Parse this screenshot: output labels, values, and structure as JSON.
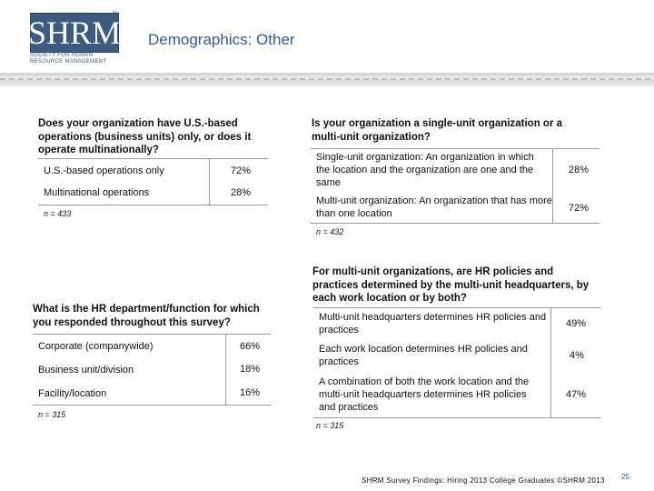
{
  "logo": {
    "text": "SHRM",
    "reg": "®",
    "sub_line1": "SOCIETY FOR HUMAN",
    "sub_line2": "RESOURCE MANAGEMENT"
  },
  "title": "Demographics: Other",
  "q1": {
    "question": "Does your organization have U.S.-based operations (business units) only, or does it operate multinationally?",
    "rows": [
      {
        "label": "U.S.-based operations only",
        "value": "72%"
      },
      {
        "label": "Multinational operations",
        "value": "28%"
      }
    ],
    "n": "n = 433"
  },
  "q2": {
    "question": "Is your organization a single-unit organization or a multi-unit organization?",
    "rows": [
      {
        "label": "Single-unit organization: An organization in which the location and the organization are one and the same",
        "value": "28%"
      },
      {
        "label": "Multi-unit organization: An organization that has more than one location",
        "value": "72%"
      }
    ],
    "n": "n = 432"
  },
  "q3": {
    "question": "What is the HR department/function for which you responded throughout this survey?",
    "rows": [
      {
        "label": "Corporate (companywide)",
        "value": "66%"
      },
      {
        "label": "Business unit/division",
        "value": "18%"
      },
      {
        "label": "Facility/location",
        "value": "16%"
      }
    ],
    "n": "n = 315"
  },
  "q4": {
    "question": "For multi-unit organizations, are HR policies and practices determined by the multi-unit headquarters, by each work location or by both?",
    "rows": [
      {
        "label": "Multi-unit headquarters determines HR policies and practices",
        "value": "49%"
      },
      {
        "label": "Each work location determines HR policies and practices",
        "value": "4%"
      },
      {
        "label": "A combination of both the work location and the multi-unit headquarters determines HR policies and practices",
        "value": "47%"
      }
    ],
    "n": "n = 315"
  },
  "footer": "SHRM Survey Findings: Hiring 2013 College Graduates ©SHRM 2013",
  "page_number": "25"
}
